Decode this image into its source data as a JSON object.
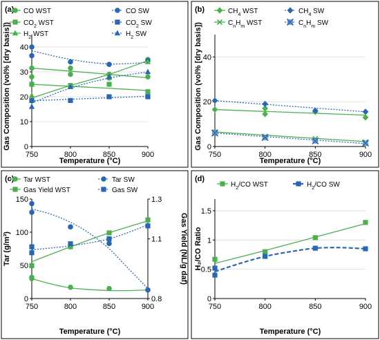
{
  "colors": {
    "wst": "#4caf50",
    "sw": "#2a67b3",
    "grid": "#d9d9d9"
  },
  "chart_data": [
    {
      "panel_label": "(a)",
      "type": "scatter",
      "xlabel": "Temperature (°C)",
      "ylabel": "Gas Composition (vol% [dry basis])",
      "x_ticks": [
        "750",
        "800",
        "850",
        "900"
      ],
      "y_ticks": [
        "0",
        "10",
        "20",
        "30",
        "40"
      ],
      "xlim": [
        750,
        900
      ],
      "ylim": [
        0,
        45
      ],
      "grid": "horizontal",
      "legend_position": "top",
      "series": [
        {
          "name": "CO WST",
          "legend_html": "CO WST",
          "marker": "circle",
          "color": "wst",
          "line": "solid",
          "x": [
            750,
            750,
            800,
            800,
            850,
            850,
            900,
            900
          ],
          "y": [
            31.5,
            28.0,
            31.5,
            29.0,
            29.0,
            27.5,
            35.0,
            28.0
          ],
          "trend_x": [
            750,
            800,
            850,
            900
          ],
          "trend_y": [
            31.5,
            30.3,
            29.0,
            27.6
          ]
        },
        {
          "name": "CO SW",
          "legend_html": "CO SW",
          "marker": "circle",
          "color": "sw",
          "line": "dotted",
          "x": [
            750,
            750,
            800,
            850,
            900
          ],
          "y": [
            40.0,
            36.5,
            34.0,
            33.0,
            34.5
          ],
          "trend_x": [
            750,
            800,
            850,
            900
          ],
          "trend_y": [
            38.5,
            35.0,
            33.2,
            33.8
          ]
        },
        {
          "name": "CO2 WST",
          "legend_html": "CO<tspan baseline-shift='sub' font-size='7'>2</tspan> WST",
          "marker": "square",
          "color": "wst",
          "line": "solid",
          "x": [
            750,
            800,
            850,
            900
          ],
          "y": [
            25.0,
            24.5,
            25.0,
            22.0
          ],
          "trend_x": [
            750,
            800,
            850,
            900
          ],
          "trend_y": [
            25.0,
            24.2,
            23.4,
            22.5
          ]
        },
        {
          "name": "CO2 SW",
          "legend_html": "CO<tspan baseline-shift='sub' font-size='7'>2</tspan> SW",
          "marker": "square",
          "color": "sw",
          "line": "dotted",
          "x": [
            750,
            800,
            850,
            900
          ],
          "y": [
            18.5,
            18.5,
            20.0,
            20.0
          ],
          "trend_x": [
            750,
            800,
            850,
            900
          ],
          "trend_y": [
            18.4,
            19.0,
            19.6,
            20.2
          ]
        },
        {
          "name": "H2 WST",
          "legend_html": "H<tspan baseline-shift='sub' font-size='7'>2</tspan> WST",
          "marker": "triangle",
          "color": "wst",
          "line": "solid",
          "x": [
            750,
            800,
            850,
            900
          ],
          "y": [
            20.5,
            24.0,
            28.0,
            34.0
          ],
          "trend_x": [
            750,
            800,
            850,
            900
          ],
          "trend_y": [
            19.5,
            24.5,
            29.0,
            34.5
          ]
        },
        {
          "name": "H2 SW",
          "legend_html": "H<tspan baseline-shift='sub' font-size='7'>2</tspan> SW",
          "marker": "triangle",
          "color": "sw",
          "line": "dotted",
          "x": [
            750,
            800,
            850,
            900
          ],
          "y": [
            16.0,
            24.0,
            28.0,
            30.0
          ],
          "trend_x": [
            750,
            800,
            850,
            900
          ],
          "trend_y": [
            17.5,
            23.5,
            27.5,
            30.0
          ]
        }
      ]
    },
    {
      "panel_label": "(b)",
      "type": "scatter",
      "xlabel": "Temperature (°C)",
      "ylabel": "Gas Composition (vol% [dry basis])",
      "x_ticks": [
        "750",
        "800",
        "850",
        "900"
      ],
      "y_ticks": [
        "0",
        "20",
        "40"
      ],
      "xlim": [
        750,
        900
      ],
      "ylim": [
        0,
        50
      ],
      "grid": "horizontal",
      "legend_position": "top",
      "series": [
        {
          "name": "CH4 WST",
          "legend_html": "CH<tspan baseline-shift='sub' font-size='7'>4</tspan> WST",
          "marker": "diamond",
          "color": "wst",
          "line": "solid",
          "x": [
            750,
            800,
            800,
            850,
            900
          ],
          "y": [
            16.5,
            17.0,
            14.5,
            15.5,
            13.0
          ],
          "trend_x": [
            750,
            900
          ],
          "trend_y": [
            16.5,
            14.0
          ]
        },
        {
          "name": "CH4 SW",
          "legend_html": "CH<tspan baseline-shift='sub' font-size='7'>4</tspan> SW",
          "marker": "diamond",
          "color": "sw",
          "line": "dotted",
          "x": [
            750,
            800,
            850,
            900
          ],
          "y": [
            20.5,
            19.0,
            16.0,
            15.5
          ],
          "trend_x": [
            750,
            900
          ],
          "trend_y": [
            20.5,
            15.5
          ]
        },
        {
          "name": "CnHm WST",
          "legend_html": "C<tspan baseline-shift='sub' font-size='7'>n</tspan>H<tspan baseline-shift='sub' font-size='7'>m</tspan> WST",
          "marker": "cross",
          "color": "wst",
          "line": "solid",
          "x": [
            750,
            800,
            850,
            900
          ],
          "y": [
            6.5,
            4.5,
            3.5,
            2.0
          ],
          "trend_x": [
            750,
            900
          ],
          "trend_y": [
            6.5,
            2.2
          ]
        },
        {
          "name": "CnHm SW",
          "legend_html": "C<tspan baseline-shift='sub' font-size='7'>n</tspan>H<tspan baseline-shift='sub' font-size='7'>m</tspan> SW",
          "marker": "xsquare",
          "color": "sw",
          "line": "dotted",
          "x": [
            750,
            800,
            850,
            900
          ],
          "y": [
            6.0,
            4.0,
            2.5,
            1.5
          ],
          "trend_x": [
            750,
            900
          ],
          "trend_y": [
            6.0,
            1.3
          ]
        }
      ]
    },
    {
      "panel_label": "(c)",
      "type": "scatter",
      "xlabel": "Temperature (°C)",
      "ylabel": "Tar (g/m³)",
      "ylabel2": "Gas Yield (NL/g daf)",
      "x_ticks": [
        "750",
        "800",
        "850",
        "900"
      ],
      "y_ticks": [
        "0",
        "50",
        "100",
        "150"
      ],
      "y2_ticks": [
        "0.8",
        "1.1",
        "1.3"
      ],
      "xlim": [
        750,
        900
      ],
      "ylim": [
        0,
        150
      ],
      "ylim2": [
        0.8,
        1.3
      ],
      "grid": "none",
      "legend_position": "top",
      "series": [
        {
          "name": "Tar WST",
          "legend_html": "Tar WST",
          "marker": "circle",
          "color": "wst",
          "line": "solid",
          "axis": "left",
          "x": [
            750,
            750,
            800,
            850,
            900
          ],
          "y": [
            32,
            30,
            17,
            15,
            13
          ],
          "trend_x": [
            750,
            775,
            800,
            825,
            850,
            875,
            900
          ],
          "trend_y": [
            30,
            22,
            16,
            13.5,
            12,
            12,
            13
          ]
        },
        {
          "name": "Tar SW",
          "legend_html": "Tar SW",
          "marker": "circle",
          "color": "sw",
          "line": "dotted",
          "axis": "left",
          "x": [
            750,
            750,
            800,
            850,
            900
          ],
          "y": [
            143,
            130,
            108,
            83,
            13
          ],
          "trend_x": [
            750,
            775,
            800,
            825,
            850,
            875,
            900
          ],
          "trend_y": [
            135,
            127,
            115,
            98,
            75,
            45,
            15
          ]
        },
        {
          "name": "Gas Yield WST",
          "legend_html": "Gas Yield WST",
          "marker": "square",
          "color": "wst",
          "line": "solid",
          "axis": "right",
          "x": [
            750,
            800,
            850,
            900
          ],
          "y": [
            0.965,
            1.06,
            1.13,
            1.195
          ],
          "trend_x": [
            750,
            800,
            850,
            900
          ],
          "trend_y": [
            0.985,
            1.06,
            1.13,
            1.19
          ]
        },
        {
          "name": "Gas SW",
          "legend_html": "Gas SW",
          "marker": "square",
          "color": "sw",
          "line": "dotted",
          "axis": "right",
          "x": [
            750,
            750,
            800,
            850,
            900
          ],
          "y": [
            1.06,
            1.03,
            1.075,
            1.1,
            1.165
          ],
          "trend_x": [
            750,
            800,
            850,
            900
          ],
          "trend_y": [
            1.045,
            1.065,
            1.1,
            1.17
          ]
        }
      ]
    },
    {
      "panel_label": "(d)",
      "type": "line",
      "xlabel": "Temperature (°C)",
      "ylabel": "H₂/CO Ratio",
      "x_ticks": [
        "750",
        "800",
        "850",
        "900"
      ],
      "y_ticks": [
        "0",
        "0.5",
        "1",
        "1.5"
      ],
      "xlim": [
        750,
        900
      ],
      "ylim": [
        0,
        1.7
      ],
      "grid": "horizontal",
      "legend_position": "top",
      "series": [
        {
          "name": "H2/CO WST",
          "legend_html": "H<tspan baseline-shift='sub' font-size='7'>2</tspan>/CO WST",
          "marker": "square",
          "color": "wst",
          "line": "solid",
          "x": [
            750,
            800,
            850,
            900
          ],
          "y": [
            0.67,
            0.8,
            1.04,
            1.3
          ],
          "trend_x": [
            750,
            800,
            850,
            900
          ],
          "trend_y": [
            0.6,
            0.82,
            1.05,
            1.28
          ]
        },
        {
          "name": "H2/CO SW",
          "legend_html": "H<tspan baseline-shift='sub' font-size='7'>2</tspan>/CO SW",
          "marker": "square",
          "color": "sw",
          "line": "dashed",
          "x": [
            750,
            750,
            800,
            850,
            900
          ],
          "y": [
            0.52,
            0.4,
            0.72,
            0.86,
            0.85
          ],
          "trend_x": [
            750,
            775,
            800,
            825,
            850,
            875,
            900
          ],
          "trend_y": [
            0.46,
            0.6,
            0.72,
            0.8,
            0.86,
            0.87,
            0.85
          ]
        }
      ]
    }
  ]
}
